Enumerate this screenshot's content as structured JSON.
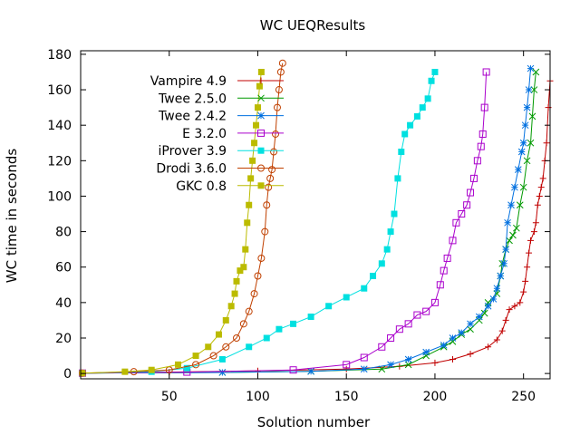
{
  "chart_data": {
    "type": "line",
    "title": "WC UEQResults",
    "xlabel": "Solution number",
    "ylabel": "WC time in seconds",
    "xlim": [
      0,
      265
    ],
    "ylim": [
      -3,
      182
    ],
    "xticks": [
      50,
      100,
      150,
      200,
      250
    ],
    "yticks": [
      0,
      20,
      40,
      60,
      80,
      100,
      120,
      140,
      160,
      180
    ],
    "grid": false,
    "legend_position": "top-left",
    "series": [
      {
        "name": "Vampire 4.9",
        "color": "#c00000",
        "marker": "plus",
        "points": [
          [
            1,
            0.2
          ],
          [
            50,
            0.8
          ],
          [
            100,
            1.5
          ],
          [
            150,
            2.5
          ],
          [
            180,
            4
          ],
          [
            200,
            6
          ],
          [
            210,
            8
          ],
          [
            220,
            11
          ],
          [
            230,
            15
          ],
          [
            235,
            19
          ],
          [
            238,
            24
          ],
          [
            240,
            30
          ],
          [
            242,
            36
          ],
          [
            245,
            38
          ],
          [
            248,
            40
          ],
          [
            250,
            46
          ],
          [
            251,
            52
          ],
          [
            252,
            60
          ],
          [
            253,
            68
          ],
          [
            254,
            75
          ],
          [
            256,
            80
          ],
          [
            257,
            85
          ],
          [
            258,
            95
          ],
          [
            259,
            100
          ],
          [
            260,
            105
          ],
          [
            261,
            110
          ],
          [
            262,
            120
          ],
          [
            263,
            130
          ],
          [
            264,
            150
          ],
          [
            265,
            165
          ]
        ]
      },
      {
        "name": "Twee 2.5.0",
        "color": "#009900",
        "marker": "x",
        "points": [
          [
            1,
            0.2
          ],
          [
            80,
            0.6
          ],
          [
            130,
            1.2
          ],
          [
            170,
            2.5
          ],
          [
            185,
            5
          ],
          [
            195,
            10
          ],
          [
            205,
            15
          ],
          [
            210,
            18
          ],
          [
            215,
            22
          ],
          [
            220,
            25
          ],
          [
            225,
            30
          ],
          [
            228,
            34
          ],
          [
            230,
            40
          ],
          [
            235,
            45
          ],
          [
            237,
            55
          ],
          [
            238,
            62
          ],
          [
            240,
            70
          ],
          [
            242,
            75
          ],
          [
            244,
            78
          ],
          [
            246,
            82
          ],
          [
            248,
            95
          ],
          [
            250,
            105
          ],
          [
            252,
            120
          ],
          [
            254,
            130
          ],
          [
            255,
            145
          ],
          [
            256,
            160
          ],
          [
            257,
            170
          ]
        ]
      },
      {
        "name": "Twee 2.4.2",
        "color": "#0070e0",
        "marker": "star",
        "points": [
          [
            1,
            0.2
          ],
          [
            80,
            0.6
          ],
          [
            130,
            1.2
          ],
          [
            160,
            2.5
          ],
          [
            175,
            5
          ],
          [
            185,
            8
          ],
          [
            195,
            12
          ],
          [
            205,
            16
          ],
          [
            210,
            20
          ],
          [
            215,
            23
          ],
          [
            220,
            28
          ],
          [
            225,
            32
          ],
          [
            230,
            38
          ],
          [
            233,
            42
          ],
          [
            235,
            48
          ],
          [
            237,
            55
          ],
          [
            239,
            62
          ],
          [
            240,
            70
          ],
          [
            241,
            85
          ],
          [
            243,
            95
          ],
          [
            245,
            105
          ],
          [
            247,
            115
          ],
          [
            249,
            125
          ],
          [
            250,
            130
          ],
          [
            251,
            140
          ],
          [
            252,
            150
          ],
          [
            253,
            160
          ],
          [
            254,
            172
          ]
        ]
      },
      {
        "name": "E 3.2.0",
        "color": "#aa00cc",
        "marker": "square-open",
        "points": [
          [
            1,
            0.2
          ],
          [
            60,
            0.8
          ],
          [
            120,
            2
          ],
          [
            150,
            5
          ],
          [
            160,
            9
          ],
          [
            170,
            15
          ],
          [
            175,
            20
          ],
          [
            180,
            25
          ],
          [
            185,
            28
          ],
          [
            190,
            33
          ],
          [
            195,
            35
          ],
          [
            200,
            40
          ],
          [
            203,
            50
          ],
          [
            205,
            58
          ],
          [
            207,
            65
          ],
          [
            210,
            75
          ],
          [
            212,
            85
          ],
          [
            215,
            90
          ],
          [
            218,
            95
          ],
          [
            220,
            102
          ],
          [
            222,
            110
          ],
          [
            224,
            120
          ],
          [
            226,
            128
          ],
          [
            227,
            135
          ],
          [
            228,
            150
          ],
          [
            229,
            170
          ]
        ]
      },
      {
        "name": "iProver 3.9",
        "color": "#00e0e0",
        "marker": "square-filled",
        "points": [
          [
            1,
            0.2
          ],
          [
            40,
            1
          ],
          [
            60,
            3
          ],
          [
            80,
            8
          ],
          [
            95,
            15
          ],
          [
            105,
            20
          ],
          [
            112,
            25
          ],
          [
            120,
            28
          ],
          [
            130,
            32
          ],
          [
            140,
            38
          ],
          [
            150,
            43
          ],
          [
            160,
            48
          ],
          [
            165,
            55
          ],
          [
            170,
            62
          ],
          [
            173,
            70
          ],
          [
            175,
            80
          ],
          [
            177,
            90
          ],
          [
            179,
            110
          ],
          [
            181,
            125
          ],
          [
            183,
            135
          ],
          [
            186,
            140
          ],
          [
            190,
            145
          ],
          [
            193,
            150
          ],
          [
            196,
            155
          ],
          [
            198,
            165
          ],
          [
            200,
            170
          ]
        ]
      },
      {
        "name": "Drodi 3.6.0",
        "color": "#c04000",
        "marker": "circle-open",
        "points": [
          [
            1,
            0.2
          ],
          [
            30,
            1
          ],
          [
            50,
            2
          ],
          [
            65,
            5
          ],
          [
            75,
            10
          ],
          [
            82,
            15
          ],
          [
            88,
            20
          ],
          [
            92,
            28
          ],
          [
            95,
            35
          ],
          [
            98,
            45
          ],
          [
            100,
            55
          ],
          [
            102,
            65
          ],
          [
            104,
            80
          ],
          [
            105,
            95
          ],
          [
            106,
            105
          ],
          [
            107,
            110
          ],
          [
            108,
            115
          ],
          [
            109,
            125
          ],
          [
            110,
            135
          ],
          [
            111,
            150
          ],
          [
            112,
            160
          ],
          [
            113,
            170
          ],
          [
            114,
            175
          ]
        ]
      },
      {
        "name": "GKC 0.8",
        "color": "#bbbb00",
        "marker": "square-filled",
        "points": [
          [
            1,
            0.2
          ],
          [
            25,
            1
          ],
          [
            40,
            2
          ],
          [
            55,
            5
          ],
          [
            65,
            10
          ],
          [
            72,
            15
          ],
          [
            78,
            22
          ],
          [
            82,
            30
          ],
          [
            85,
            38
          ],
          [
            87,
            45
          ],
          [
            88,
            52
          ],
          [
            90,
            58
          ],
          [
            92,
            60
          ],
          [
            93,
            70
          ],
          [
            94,
            85
          ],
          [
            95,
            95
          ],
          [
            96,
            110
          ],
          [
            97,
            120
          ],
          [
            98,
            130
          ],
          [
            99,
            140
          ],
          [
            100,
            150
          ],
          [
            101,
            162
          ],
          [
            102,
            170
          ]
        ]
      }
    ]
  }
}
